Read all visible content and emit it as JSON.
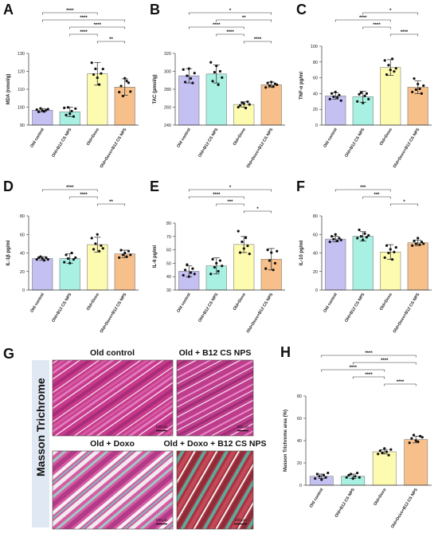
{
  "colors": {
    "old_control": "#c4c0f2",
    "b12": "#a8f0e2",
    "doxo": "#fdfbb0",
    "doxo_b12": "#f7c08a"
  },
  "chart_data": [
    {
      "panel": "A",
      "type": "bar",
      "ylabel": "MDA (nmol/g)",
      "ylim": [
        90,
        130
      ],
      "yticks": [
        90,
        100,
        110,
        120,
        130
      ],
      "categories": [
        "Old control",
        "Old+B12 CS NPS",
        "Old+Doxo",
        "Old+Doxo+B12 CS NPS"
      ],
      "values": [
        98.3,
        97.4,
        118.6,
        111.2
      ],
      "errors": [
        0.9,
        2.6,
        6.3,
        4.6
      ],
      "points": [
        [
          98.6,
          97.4,
          99.3,
          98.1,
          97.6,
          98.4,
          98.9
        ],
        [
          99.6,
          95.6,
          99.9,
          96.4,
          97.8,
          94.8,
          99.2
        ],
        [
          124.8,
          118.2,
          121.4,
          116.4,
          112.6,
          118.8,
          121.3
        ],
        [
          108.4,
          111.8,
          106.2,
          116.1,
          114.6,
          113.6,
          108.7
        ]
      ],
      "significance": [
        {
          "from": 0,
          "to": 2,
          "label": "****"
        },
        {
          "from": 0,
          "to": 3,
          "label": "****"
        },
        {
          "from": 1,
          "to": 3,
          "label": "****"
        },
        {
          "from": 1,
          "to": 2,
          "label": "****"
        },
        {
          "from": 2,
          "to": 3,
          "label": "**"
        }
      ]
    },
    {
      "panel": "B",
      "type": "bar",
      "ylabel": "TAC (µmol/g)",
      "ylim": [
        240,
        320
      ],
      "yticks": [
        240,
        260,
        280,
        300,
        320
      ],
      "categories": [
        "Old control",
        "Old+B12 CS NPS",
        "Old+Doxo",
        "Old+Doxo+B12 CS NPS"
      ],
      "values": [
        295,
        297,
        263,
        285
      ],
      "errors": [
        8,
        10,
        3,
        3
      ],
      "points": [
        [
          302,
          288,
          295,
          303,
          292,
          287,
          298
        ],
        [
          310,
          289,
          299,
          306,
          285,
          300,
          293
        ],
        [
          260,
          262,
          265,
          264,
          259,
          266,
          263
        ],
        [
          282,
          287,
          284,
          288,
          283,
          286,
          285
        ]
      ],
      "significance": [
        {
          "from": 0,
          "to": 3,
          "label": "*"
        },
        {
          "from": 1,
          "to": 3,
          "label": "**"
        },
        {
          "from": 0,
          "to": 2,
          "label": "****"
        },
        {
          "from": 1,
          "to": 2,
          "label": "****"
        },
        {
          "from": 2,
          "to": 3,
          "label": "****"
        }
      ]
    },
    {
      "panel": "C",
      "type": "bar",
      "ylabel": "TNF-α pg/ml",
      "ylim": [
        0,
        100
      ],
      "yticks": [
        0,
        20,
        40,
        60,
        80,
        100
      ],
      "categories": [
        "Old control",
        "Old+B12 CS NPS",
        "Old+Doxo",
        "Old+Doxo+B12 CS NPS"
      ],
      "values": [
        37,
        36,
        73,
        48
      ],
      "errors": [
        4,
        7,
        10,
        8
      ],
      "points": [
        [
          33,
          40,
          36,
          42,
          35,
          38,
          31
        ],
        [
          30,
          39,
          41,
          28,
          37,
          40,
          33
        ],
        [
          82,
          64,
          76,
          70,
          84,
          68,
          72
        ],
        [
          42,
          59,
          45,
          52,
          46,
          40,
          50
        ]
      ],
      "significance": [
        {
          "from": 1,
          "to": 3,
          "label": "*"
        },
        {
          "from": 0,
          "to": 2,
          "label": "****"
        },
        {
          "from": 1,
          "to": 2,
          "label": "****"
        },
        {
          "from": 2,
          "to": 3,
          "label": "****"
        }
      ]
    },
    {
      "panel": "D",
      "type": "bar",
      "ylabel": "IL-1β pg/ml",
      "ylim": [
        0,
        80
      ],
      "yticks": [
        0,
        20,
        40,
        60,
        80
      ],
      "categories": [
        "Old control",
        "Old+B12 CS NPS",
        "Old+Doxo",
        "Old+Doxo+B12 CS NPS"
      ],
      "values": [
        34,
        34,
        49,
        39
      ],
      "errors": [
        2,
        5,
        8,
        4
      ],
      "points": [
        [
          33,
          35,
          36,
          34,
          32,
          35,
          33
        ],
        [
          30,
          38,
          34,
          29,
          40,
          33,
          35
        ],
        [
          56,
          44,
          50,
          60,
          42,
          48,
          45
        ],
        [
          35,
          43,
          38,
          40,
          36,
          42,
          38
        ]
      ],
      "significance": [
        {
          "from": 0,
          "to": 2,
          "label": "****"
        },
        {
          "from": 1,
          "to": 2,
          "label": "****"
        },
        {
          "from": 2,
          "to": 3,
          "label": "**"
        }
      ]
    },
    {
      "panel": "E",
      "type": "bar",
      "ylabel": "IL-6 pg/ml",
      "ylim": [
        30,
        80
      ],
      "yticks": [
        30,
        40,
        50,
        60,
        70,
        80
      ],
      "categories": [
        "Old control",
        "Old+B12 CS NPS",
        "Old+Doxo",
        "Old+Doxo+B12 CS NPS"
      ],
      "values": [
        44,
        48,
        64,
        53
      ],
      "errors": [
        4,
        6,
        6,
        8
      ],
      "points": [
        [
          41,
          45,
          49,
          40,
          43,
          46,
          42
        ],
        [
          42,
          53,
          47,
          50,
          44,
          52,
          48
        ],
        [
          74,
          58,
          66,
          61,
          69,
          63,
          57
        ],
        [
          46,
          60,
          52,
          58,
          45,
          50,
          59
        ]
      ],
      "significance": [
        {
          "from": 0,
          "to": 3,
          "label": "*"
        },
        {
          "from": 0,
          "to": 2,
          "label": "****"
        },
        {
          "from": 1,
          "to": 2,
          "label": "***"
        },
        {
          "from": 2,
          "to": 3,
          "label": "*"
        }
      ]
    },
    {
      "panel": "F",
      "type": "bar",
      "ylabel": "IL-10 pg/ml",
      "ylim": [
        0,
        80
      ],
      "yticks": [
        0,
        20,
        40,
        60,
        80
      ],
      "categories": [
        "Old control",
        "Old+B12 CS NPS",
        "Old+Doxo",
        "Old+Doxo+B12 CS NPS"
      ],
      "values": [
        55,
        58,
        41,
        51
      ],
      "errors": [
        3,
        5,
        8,
        3
      ],
      "points": [
        [
          52,
          58,
          55,
          60,
          53,
          56,
          54
        ],
        [
          56,
          65,
          58,
          54,
          61,
          57,
          59
        ],
        [
          35,
          48,
          40,
          44,
          33,
          41,
          46
        ],
        [
          48,
          53,
          50,
          56,
          49,
          52,
          50
        ]
      ],
      "significance": [
        {
          "from": 0,
          "to": 2,
          "label": "***"
        },
        {
          "from": 1,
          "to": 2,
          "label": "***"
        },
        {
          "from": 2,
          "to": 3,
          "label": "*"
        }
      ]
    },
    {
      "panel": "H",
      "type": "bar",
      "ylabel": "Masson Trichrome area (%)",
      "ylim": [
        0,
        80
      ],
      "yticks": [
        0,
        20,
        40,
        60,
        80
      ],
      "categories": [
        "Old control",
        "Old+B12 CS NPS",
        "Old+Doxo",
        "Old+Doxo+B12 CS NPS"
      ],
      "values": [
        8,
        8,
        30,
        41
      ],
      "errors": [
        2,
        2,
        2,
        3
      ],
      "points": [
        [
          6,
          10,
          8,
          5,
          9,
          7,
          11
        ],
        [
          7,
          9,
          10,
          6,
          8,
          11,
          7
        ],
        [
          28,
          31,
          29,
          33,
          30,
          27,
          32
        ],
        [
          38,
          42,
          45,
          40,
          39,
          44,
          43
        ]
      ],
      "significance": [
        {
          "from": 0,
          "to": 3,
          "label": "****"
        },
        {
          "from": 1,
          "to": 3,
          "label": "****"
        },
        {
          "from": 0,
          "to": 2,
          "label": "****"
        },
        {
          "from": 1,
          "to": 2,
          "label": "****"
        },
        {
          "from": 2,
          "to": 3,
          "label": "****"
        }
      ]
    }
  ],
  "histology": {
    "panel": "G",
    "stain_label": "Masson Trichrome",
    "images": [
      {
        "title": "Old control",
        "scale": "100 µm"
      },
      {
        "title": "Old + B12 CS NPS",
        "scale": "100 µm"
      },
      {
        "title": "Old + Doxo",
        "scale": "100 µm"
      },
      {
        "title": "Old + Doxo + B12 CS NPS",
        "scale": "100 µm"
      }
    ]
  }
}
